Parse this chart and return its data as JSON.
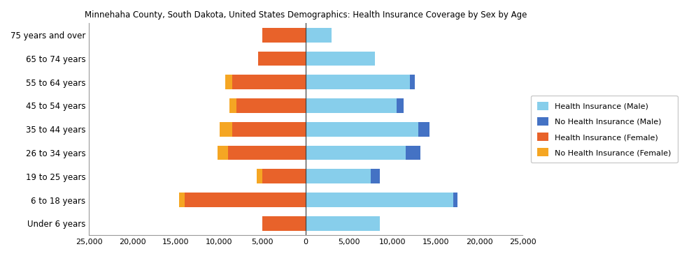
{
  "title": "Minnehaha County, South Dakota, United States Demographics: Health Insurance Coverage by Sex by Age",
  "age_groups": [
    "Under 6 years",
    "6 to 18 years",
    "19 to 25 years",
    "26 to 34 years",
    "35 to 44 years",
    "45 to 54 years",
    "55 to 64 years",
    "65 to 74 years",
    "75 years and over"
  ],
  "male_insured": [
    8500,
    17000,
    7500,
    11500,
    13000,
    10500,
    12000,
    8000,
    3000
  ],
  "male_uninsured": [
    0,
    500,
    1000,
    1700,
    1300,
    800,
    600,
    0,
    0
  ],
  "female_insured": [
    5000,
    14000,
    5000,
    9000,
    8500,
    8000,
    8500,
    5500,
    5000
  ],
  "female_no_ins": [
    0,
    600,
    700,
    1200,
    1400,
    800,
    800,
    0,
    0
  ],
  "color_male_insured": "#87CEEB",
  "color_male_uninsured": "#4472C4",
  "color_female_insured": "#E8622A",
  "color_female_no_ins": "#F5A623",
  "xlim": 25000,
  "x_ticks": [
    -25000,
    -20000,
    -15000,
    -10000,
    -5000,
    0,
    5000,
    10000,
    15000,
    20000,
    25000
  ],
  "legend_labels": [
    "Health Insurance (Male)",
    "No Health Insurance (Male)",
    "Health Insurance (Female)",
    "No Health Insurance (Female)"
  ],
  "legend_colors": [
    "#87CEEB",
    "#4472C4",
    "#E8622A",
    "#F5A623"
  ]
}
